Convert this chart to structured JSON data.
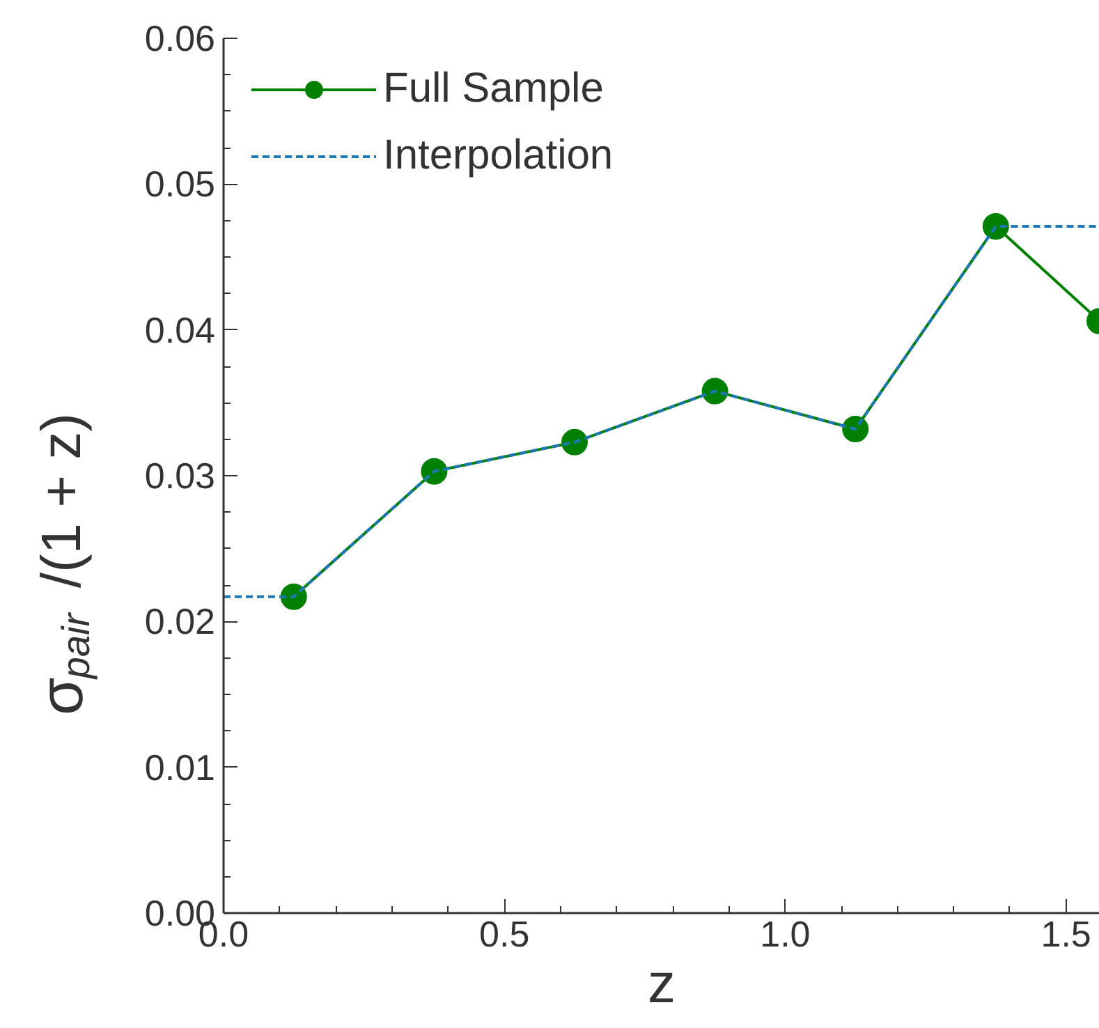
{
  "chart_data": {
    "type": "line",
    "xlabel": "z",
    "ylabel": "σ$_{pair}$/(1 + z)",
    "xlim": [
      0,
      1.56
    ],
    "ylim": [
      0,
      0.06
    ],
    "xticks": [
      {
        "value": 0,
        "label": "0.0"
      },
      {
        "value": 0.1,
        "label": null
      },
      {
        "value": 0.2,
        "label": null
      },
      {
        "value": 0.3,
        "label": null
      },
      {
        "value": 0.4,
        "label": null
      },
      0.5,
      {
        "value": 0.6,
        "label": null
      },
      {
        "value": 0.7,
        "label": null
      },
      {
        "value": 0.8,
        "label": null
      },
      {
        "value": 0.9,
        "label": null
      },
      {
        "value": 1,
        "label": "1.0"
      },
      {
        "value": 1.1,
        "label": null
      },
      {
        "value": 1.2,
        "label": null
      },
      {
        "value": 1.3,
        "label": null
      },
      {
        "value": 1.4,
        "label": null
      },
      1.5
    ],
    "yticks": [
      {
        "value": 0,
        "label": "0.00"
      },
      {
        "value": 0.0025,
        "label": null
      },
      {
        "value": 0.005,
        "label": null
      },
      {
        "value": 0.0075,
        "label": null
      },
      0.01,
      {
        "value": 0.0125,
        "label": null
      },
      {
        "value": 0.015,
        "label": null
      },
      {
        "value": 0.0175,
        "label": null
      },
      0.02,
      {
        "value": 0.0225,
        "label": null
      },
      {
        "value": 0.025,
        "label": null
      },
      {
        "value": 0.0275,
        "label": null
      },
      0.03,
      {
        "value": 0.0325,
        "label": null
      },
      {
        "value": 0.035,
        "label": null
      },
      {
        "value": 0.0375,
        "label": null
      },
      0.04,
      {
        "value": 0.0425,
        "label": null
      },
      {
        "value": 0.045,
        "label": null
      },
      {
        "value": 0.0475,
        "label": null
      },
      0.05,
      {
        "value": 0.0525,
        "label": null
      },
      {
        "value": 0.055,
        "label": null
      },
      {
        "value": 0.0575,
        "label": null
      },
      0.06
    ],
    "grid": false,
    "legend": "top left",
    "series": [
      {
        "name": "Full Sample",
        "color": "#008000",
        "marker": "circle",
        "line_style": "solid",
        "x": [
          0.125,
          0.375,
          0.625,
          0.875,
          1.125,
          1.375,
          1.56
        ],
        "values": [
          0.0217,
          0.0303,
          0.0323,
          0.0358,
          0.0332,
          0.0471,
          0.0406
        ]
      },
      {
        "name": "Interpolation",
        "color": "#1f77b4",
        "marker": "none",
        "line_style": "dashed",
        "x": [
          0,
          0.125,
          0.375,
          0.625,
          0.875,
          1.125,
          1.375,
          1.56
        ],
        "values": [
          0.0217,
          0.0217,
          0.0303,
          0.0323,
          0.0358,
          0.0332,
          0.0471,
          0.0471
        ]
      }
    ]
  }
}
